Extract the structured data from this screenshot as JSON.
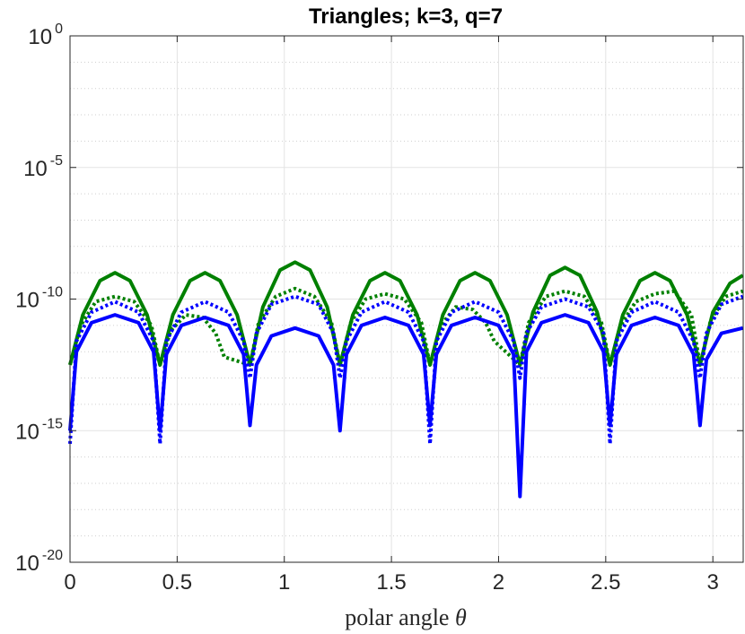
{
  "chart_data": {
    "type": "line",
    "title": "Triangles; k=3, q=7",
    "xlabel": "polar angle",
    "xlabel_symbol": "θ",
    "ylabel": "",
    "yscale": "log",
    "xlim": [
      0,
      3.1416
    ],
    "ylim_exponents": [
      -20,
      0
    ],
    "x_ticks": [
      "0",
      "0.5",
      "1",
      "1.5",
      "2",
      "2.5",
      "3"
    ],
    "x_tick_values": [
      0,
      0.5,
      1,
      1.5,
      2,
      2.5,
      3
    ],
    "y_tick_base": "10",
    "y_tick_exponents": [
      "0",
      "-5",
      "-10",
      "-15",
      "-20"
    ],
    "y_tick_values": [
      0,
      -5,
      -10,
      -15,
      -20
    ],
    "grid": true,
    "series": [
      {
        "name": "green solid",
        "color": "#008000",
        "style": "solid",
        "log10_x": [
          0.0,
          0.06,
          0.14,
          0.21,
          0.28,
          0.36,
          0.42,
          0.48,
          0.56,
          0.63,
          0.7,
          0.78,
          0.84,
          0.9,
          0.98,
          1.05,
          1.12,
          1.2,
          1.26,
          1.32,
          1.4,
          1.47,
          1.54,
          1.62,
          1.68,
          1.74,
          1.82,
          1.89,
          1.96,
          2.04,
          2.1,
          2.16,
          2.24,
          2.31,
          2.38,
          2.46,
          2.52,
          2.58,
          2.66,
          2.73,
          2.8,
          2.88,
          2.94,
          3.0,
          3.08,
          3.14
        ],
        "log10_y": [
          -12.5,
          -10.6,
          -9.3,
          -9.0,
          -9.3,
          -10.6,
          -12.5,
          -10.6,
          -9.3,
          -9.0,
          -9.3,
          -10.6,
          -12.5,
          -10.3,
          -8.9,
          -8.6,
          -8.9,
          -10.3,
          -12.5,
          -10.6,
          -9.3,
          -9.0,
          -9.3,
          -10.6,
          -12.5,
          -10.6,
          -9.3,
          -9.0,
          -9.3,
          -10.6,
          -12.5,
          -10.5,
          -9.1,
          -8.8,
          -9.1,
          -10.5,
          -12.5,
          -10.6,
          -9.3,
          -9.0,
          -9.3,
          -10.6,
          -12.5,
          -10.5,
          -9.4,
          -9.1
        ]
      },
      {
        "name": "green dotted",
        "color": "#008000",
        "style": "dotted",
        "log10_x": [
          0.0,
          0.05,
          0.12,
          0.21,
          0.3,
          0.38,
          0.42,
          0.47,
          0.54,
          0.62,
          0.68,
          0.72,
          0.84,
          0.88,
          0.96,
          1.05,
          1.14,
          1.22,
          1.26,
          1.31,
          1.38,
          1.47,
          1.56,
          1.64,
          1.68,
          1.73,
          1.8,
          1.88,
          1.94,
          1.98,
          2.1,
          2.14,
          2.22,
          2.31,
          2.4,
          2.48,
          2.52,
          2.57,
          2.64,
          2.73,
          2.82,
          2.9,
          2.94,
          2.99,
          3.06,
          3.14
        ],
        "log10_y": [
          -12.5,
          -11.0,
          -10.1,
          -9.9,
          -10.1,
          -11.0,
          -12.5,
          -11.2,
          -10.6,
          -10.7,
          -11.3,
          -12.2,
          -12.5,
          -10.9,
          -9.9,
          -9.6,
          -9.9,
          -10.9,
          -12.5,
          -10.9,
          -10.0,
          -9.8,
          -10.0,
          -10.9,
          -12.5,
          -11.0,
          -10.3,
          -10.4,
          -10.9,
          -11.6,
          -12.5,
          -10.9,
          -9.9,
          -9.7,
          -9.9,
          -10.9,
          -12.5,
          -11.0,
          -10.1,
          -9.8,
          -9.7,
          -10.6,
          -12.5,
          -10.8,
          -9.9,
          -9.7
        ]
      },
      {
        "name": "blue dotted",
        "color": "#0000ff",
        "style": "dotted",
        "log10_x": [
          0.0,
          0.03,
          0.1,
          0.21,
          0.32,
          0.39,
          0.42,
          0.45,
          0.52,
          0.63,
          0.74,
          0.81,
          0.84,
          0.87,
          0.94,
          1.05,
          1.16,
          1.23,
          1.26,
          1.29,
          1.36,
          1.47,
          1.58,
          1.65,
          1.68,
          1.71,
          1.78,
          1.89,
          2.0,
          2.07,
          2.1,
          2.13,
          2.2,
          2.31,
          2.42,
          2.49,
          2.52,
          2.55,
          2.62,
          2.73,
          2.84,
          2.91,
          2.94,
          2.97,
          3.04,
          3.14
        ],
        "log10_y": [
          -15.5,
          -11.6,
          -10.5,
          -10.1,
          -10.5,
          -11.6,
          -15.5,
          -11.6,
          -10.5,
          -10.1,
          -10.5,
          -11.6,
          -13.0,
          -11.3,
          -10.2,
          -9.9,
          -10.2,
          -11.3,
          -13.0,
          -11.6,
          -10.5,
          -10.1,
          -10.5,
          -11.6,
          -15.5,
          -11.6,
          -10.5,
          -10.1,
          -10.5,
          -11.6,
          -13.0,
          -11.3,
          -10.3,
          -10.0,
          -10.3,
          -11.3,
          -15.5,
          -11.6,
          -10.5,
          -10.1,
          -10.5,
          -11.6,
          -13.0,
          -11.3,
          -10.2,
          -9.9
        ]
      },
      {
        "name": "blue solid",
        "color": "#0000ff",
        "style": "solid",
        "log10_x": [
          0.0,
          0.03,
          0.1,
          0.21,
          0.32,
          0.39,
          0.42,
          0.45,
          0.52,
          0.63,
          0.74,
          0.81,
          0.84,
          0.87,
          0.94,
          1.05,
          1.16,
          1.23,
          1.26,
          1.29,
          1.36,
          1.47,
          1.58,
          1.65,
          1.68,
          1.71,
          1.78,
          1.89,
          2.0,
          2.07,
          2.1,
          2.13,
          2.2,
          2.31,
          2.42,
          2.49,
          2.52,
          2.55,
          2.62,
          2.73,
          2.84,
          2.91,
          2.94,
          2.97,
          3.04,
          3.14
        ],
        "log10_y": [
          -15.0,
          -12.0,
          -10.9,
          -10.6,
          -10.9,
          -12.0,
          -15.0,
          -12.1,
          -11.0,
          -10.7,
          -11.0,
          -12.1,
          -14.8,
          -12.5,
          -11.4,
          -11.1,
          -11.4,
          -12.5,
          -15.0,
          -12.1,
          -11.0,
          -10.7,
          -11.0,
          -12.1,
          -14.8,
          -12.1,
          -11.0,
          -10.7,
          -11.0,
          -12.1,
          -17.5,
          -12.0,
          -10.9,
          -10.6,
          -10.9,
          -12.0,
          -14.8,
          -12.1,
          -11.0,
          -10.7,
          -11.0,
          -12.1,
          -14.8,
          -12.3,
          -11.3,
          -11.1
        ]
      }
    ]
  }
}
